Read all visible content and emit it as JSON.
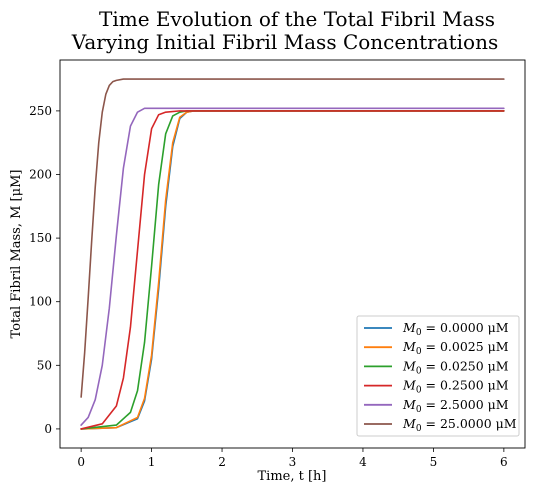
{
  "chart_data": {
    "type": "line",
    "title_line1": "Time Evolution of the Total Fibril Mass",
    "title_line2": "Varying Initial Fibril Mass Concentrations",
    "xlabel": "Time, t [h]",
    "ylabel": "Total Fibril Mass, M [μM]",
    "xlim": [
      -0.3,
      6.3
    ],
    "ylim": [
      -15,
      290
    ],
    "xticks": [
      0,
      1,
      2,
      3,
      4,
      5,
      6
    ],
    "yticks": [
      0,
      50,
      100,
      150,
      200,
      250
    ],
    "grid": false,
    "legend_position": "lower-right",
    "series": [
      {
        "name": "M0 = 0.0000 μM",
        "label_sub": "0",
        "label_rest": " = 0.0000 μM",
        "color": "#1f77b4",
        "x": [
          0,
          0.5,
          0.8,
          0.9,
          1.0,
          1.1,
          1.2,
          1.3,
          1.4,
          1.5,
          1.6,
          2,
          3,
          4,
          5,
          6
        ],
        "y": [
          0,
          1,
          8,
          22,
          55,
          110,
          175,
          222,
          244,
          249,
          250,
          250,
          250,
          250,
          250,
          250
        ]
      },
      {
        "name": "M0 = 0.0025 μM",
        "label_sub": "0",
        "label_rest": " = 0.0025 μM",
        "color": "#ff7f0e",
        "x": [
          0,
          0.5,
          0.8,
          0.9,
          1.0,
          1.1,
          1.2,
          1.3,
          1.4,
          1.5,
          1.6,
          2,
          3,
          4,
          5,
          6
        ],
        "y": [
          0,
          1,
          9,
          24,
          58,
          115,
          180,
          225,
          245,
          249,
          250,
          250,
          250,
          250,
          250,
          250
        ]
      },
      {
        "name": "M0 = 0.0250 μM",
        "label_sub": "0",
        "label_rest": " = 0.0250 μM",
        "color": "#2ca02c",
        "x": [
          0,
          0.5,
          0.7,
          0.8,
          0.9,
          1.0,
          1.1,
          1.2,
          1.3,
          1.4,
          1.5,
          2,
          3,
          4,
          5,
          6
        ],
        "y": [
          0,
          3,
          13,
          30,
          68,
          128,
          192,
          232,
          246,
          249,
          250,
          250,
          250,
          250,
          250,
          250
        ]
      },
      {
        "name": "M0 = 0.2500 μM",
        "label_sub": "0",
        "label_rest": " = 0.2500 μM",
        "color": "#d62728",
        "x": [
          0,
          0.3,
          0.5,
          0.6,
          0.7,
          0.8,
          0.9,
          1.0,
          1.1,
          1.2,
          1.4,
          2,
          3,
          4,
          5,
          6
        ],
        "y": [
          0,
          4,
          18,
          40,
          80,
          140,
          200,
          236,
          247,
          249,
          250,
          250,
          250,
          250,
          250,
          250
        ]
      },
      {
        "name": "M0 = 2.5000 μM",
        "label_sub": "0",
        "label_rest": " = 2.5000 μM",
        "color": "#9467bd",
        "x": [
          0,
          0.1,
          0.2,
          0.3,
          0.4,
          0.5,
          0.6,
          0.7,
          0.8,
          0.9,
          1.0,
          1.2,
          2,
          3,
          4,
          5,
          6
        ],
        "y": [
          3,
          9,
          23,
          50,
          95,
          152,
          205,
          238,
          249,
          252,
          252,
          252,
          252,
          252,
          252,
          252,
          252
        ]
      },
      {
        "name": "M0 = 25.0000 μM",
        "label_sub": "0",
        "label_rest": " = 25.0000 μM",
        "color": "#8c564b",
        "x": [
          0,
          0.05,
          0.1,
          0.15,
          0.2,
          0.25,
          0.3,
          0.35,
          0.4,
          0.45,
          0.5,
          0.6,
          0.8,
          1,
          2,
          3,
          4,
          5,
          6
        ],
        "y": [
          25,
          60,
          103,
          148,
          190,
          225,
          249,
          263,
          270,
          273,
          274,
          275,
          275,
          275,
          275,
          275,
          275,
          275,
          275
        ]
      }
    ]
  }
}
